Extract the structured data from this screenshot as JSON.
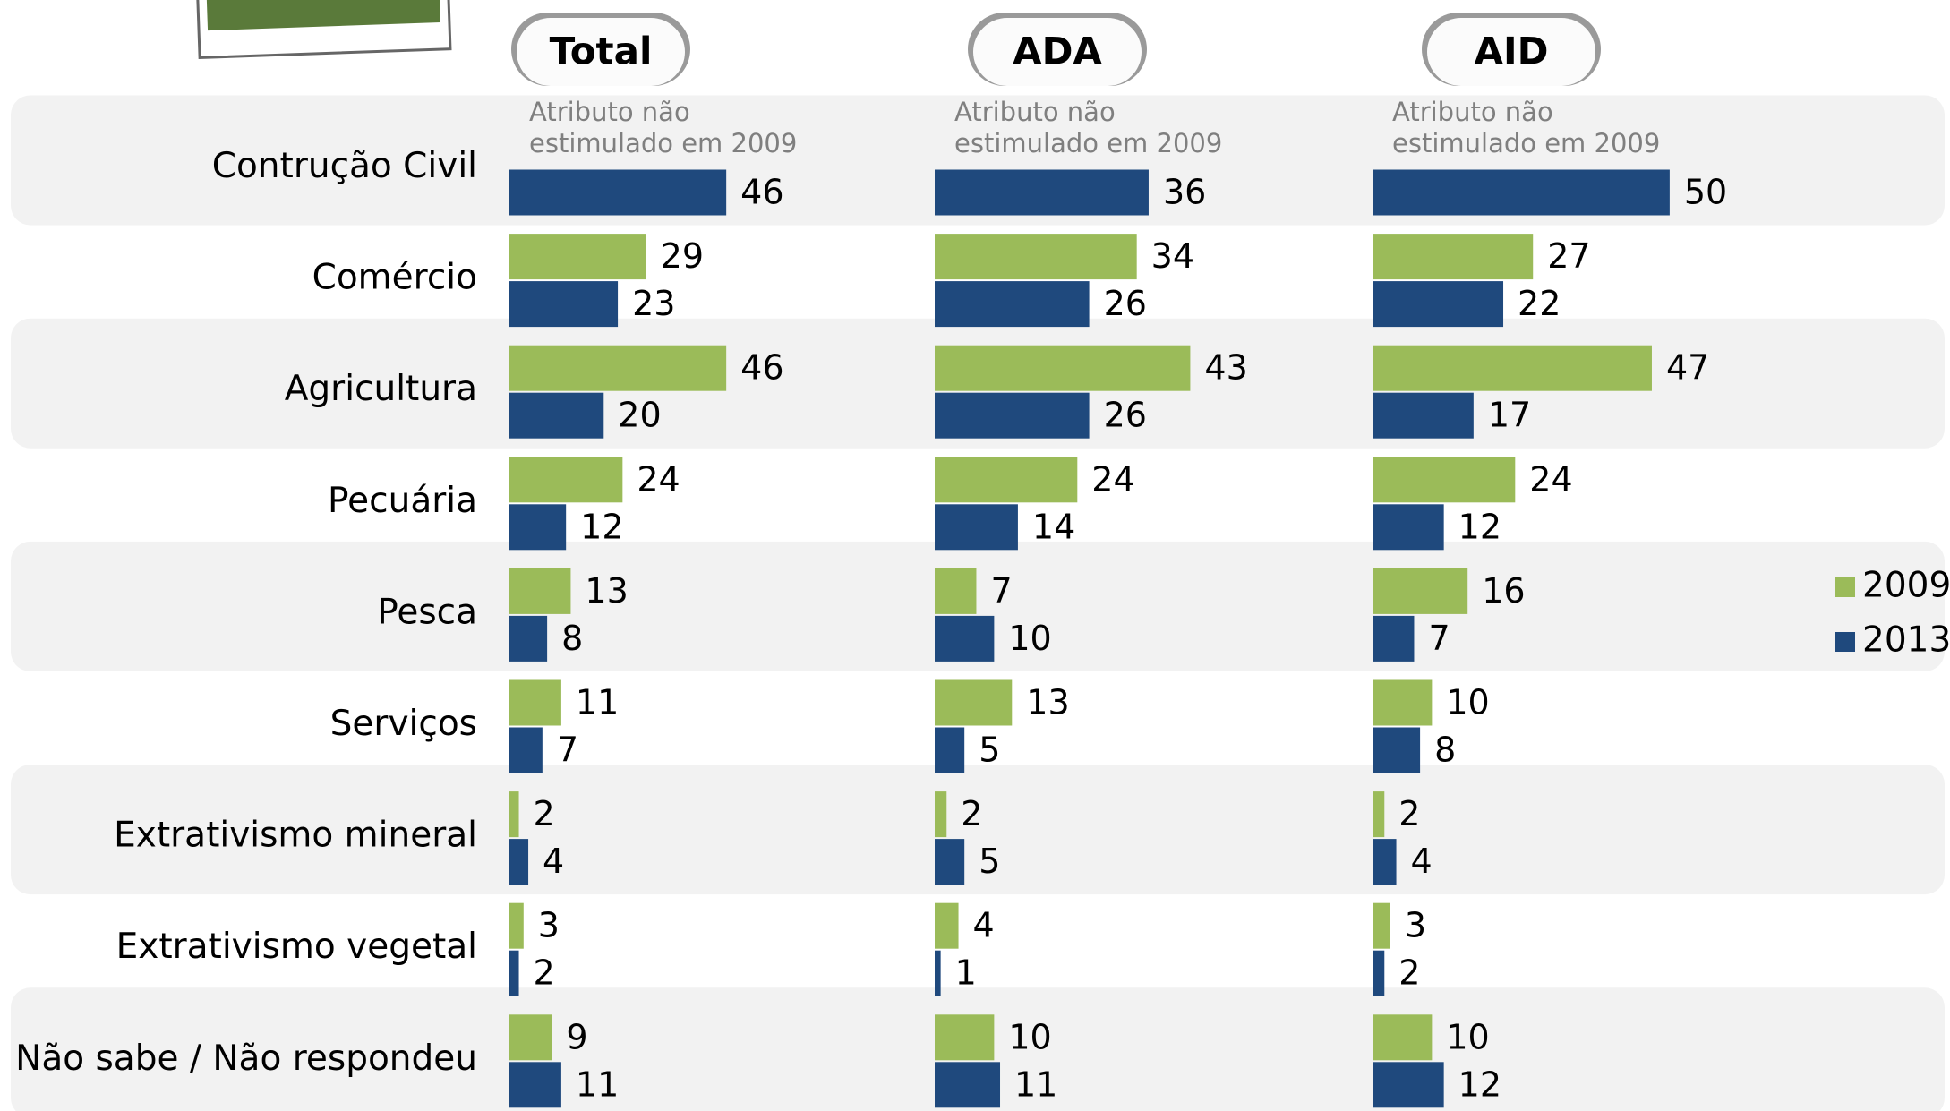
{
  "chart_data": {
    "type": "bar",
    "categories": [
      "Contrução Civil",
      "Comércio",
      "Agricultura",
      "Pecuária",
      "Pesca",
      "Serviços",
      "Extrativismo mineral",
      "Extrativismo vegetal",
      "Não sabe / Não respondeu"
    ],
    "legend": [
      {
        "name": "2009",
        "color": "#9bbb59"
      },
      {
        "name": "2013",
        "color": "#1f497d"
      }
    ],
    "panels": [
      {
        "title": "Total",
        "note": "Atributo não estimulado em 2009",
        "xlim": [
          0,
          87
        ],
        "series": [
          {
            "values": [
              null,
              29,
              46,
              24,
              13,
              11,
              2,
              3,
              9
            ]
          },
          {
            "values": [
              46,
              23,
              20,
              12,
              8,
              7,
              4,
              2,
              11
            ]
          }
        ]
      },
      {
        "title": "ADA",
        "note": "Atributo não estimulado em 2009",
        "xlim": [
          0,
          69
        ],
        "series": [
          {
            "values": [
              null,
              34,
              43,
              24,
              7,
              13,
              2,
              4,
              10
            ]
          },
          {
            "values": [
              36,
              26,
              26,
              14,
              10,
              5,
              5,
              1,
              11
            ]
          }
        ]
      },
      {
        "title": "AID",
        "note": "Atributo não estimulado em 2009",
        "xlim": [
          0,
          69
        ],
        "series": [
          {
            "values": [
              null,
              27,
              47,
              24,
              16,
              10,
              2,
              3,
              10
            ]
          },
          {
            "values": [
              50,
              22,
              17,
              12,
              7,
              8,
              4,
              2,
              12
            ]
          }
        ]
      }
    ]
  }
}
